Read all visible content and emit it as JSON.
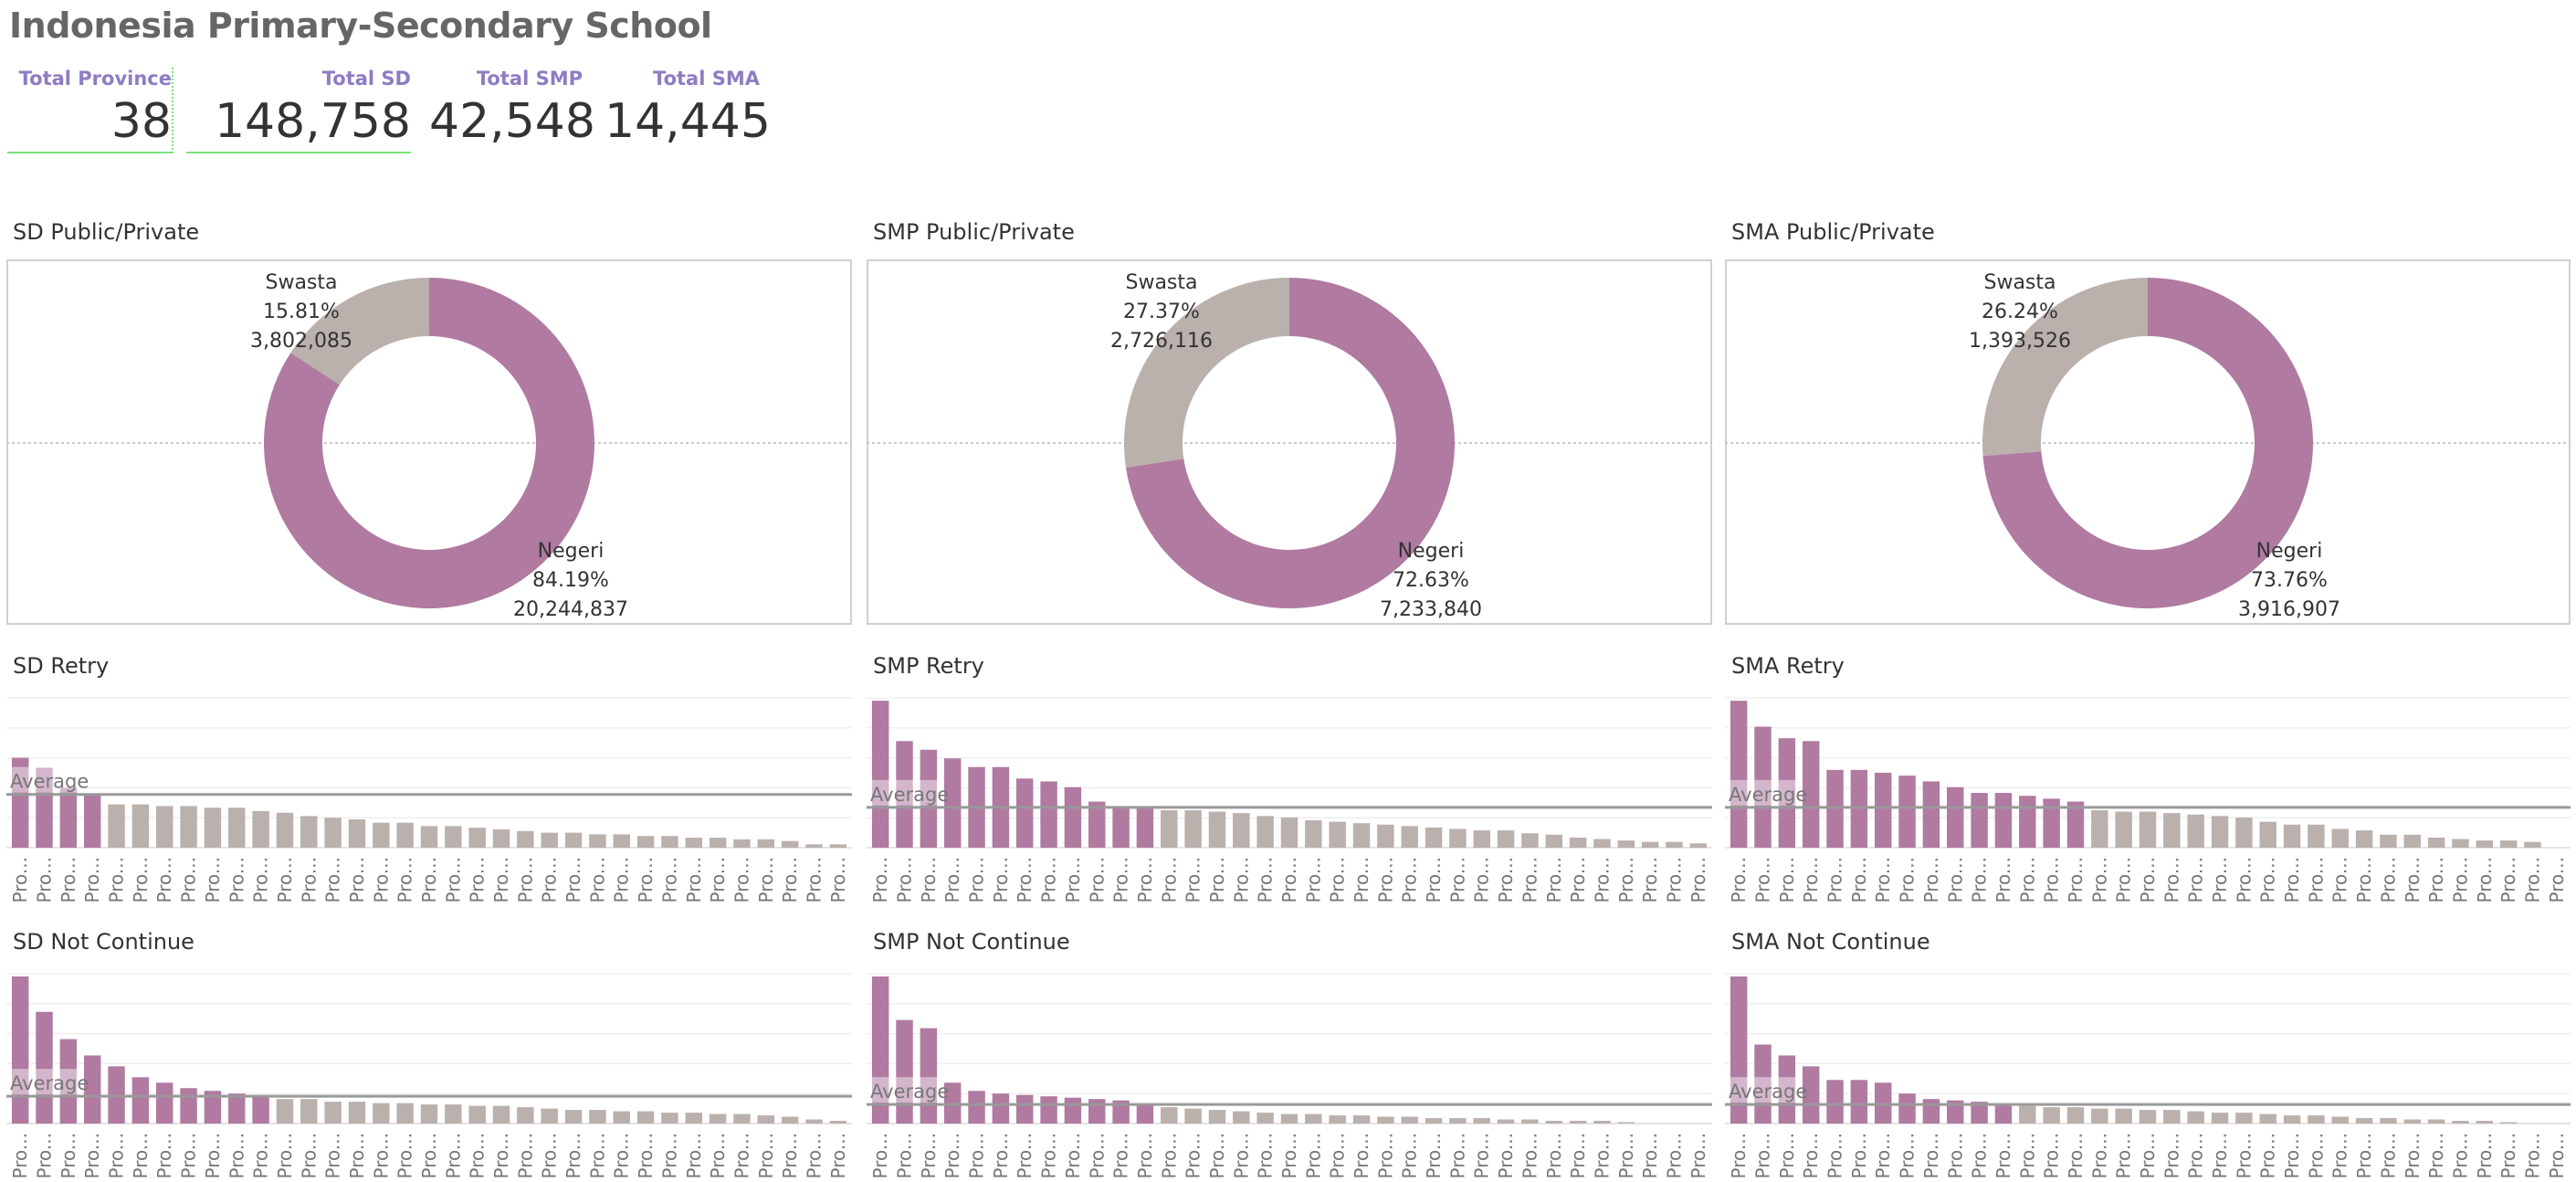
{
  "title": "Indonesia Primary-Secondary School",
  "kpis": [
    {
      "label": "Total Province",
      "value": "38"
    },
    {
      "label": "Total SD",
      "value": "148,758"
    },
    {
      "label": "Total SMP",
      "value": "42,548"
    },
    {
      "label": "Total SMA",
      "value": "14,445"
    }
  ],
  "colors": {
    "negeri": "#b07aa1",
    "swasta": "#bab0ac",
    "above": "#b07aa1",
    "below": "#bab0ac",
    "average_line": "#999999"
  },
  "chart_data": [
    {
      "type": "pie",
      "title": "SD Public/Private",
      "donut": true,
      "slices": [
        {
          "label": "Negeri",
          "percent": "84.19%",
          "value": 20244837,
          "value_text": "20,244,837"
        },
        {
          "label": "Swasta",
          "percent": "15.81%",
          "value": 3802085,
          "value_text": "3,802,085"
        }
      ]
    },
    {
      "type": "pie",
      "title": "SMP Public/Private",
      "donut": true,
      "slices": [
        {
          "label": "Negeri",
          "percent": "72.63%",
          "value": 7233840,
          "value_text": "7,233,840"
        },
        {
          "label": "Swasta",
          "percent": "27.37%",
          "value": 2726116,
          "value_text": "2,726,116"
        }
      ]
    },
    {
      "type": "pie",
      "title": "SMA Public/Private",
      "donut": true,
      "slices": [
        {
          "label": "Negeri",
          "percent": "73.76%",
          "value": 3916907,
          "value_text": "3,916,907"
        },
        {
          "label": "Swasta",
          "percent": "26.24%",
          "value": 1393526,
          "value_text": "1,393,526"
        }
      ]
    },
    {
      "type": "bar",
      "title": "SD Retry",
      "tick_label": "Pro...",
      "reference_label": "Average",
      "average": 16,
      "ymax": 45,
      "grid": true,
      "values": [
        27,
        24,
        18,
        16,
        13,
        13,
        12.5,
        12.5,
        12,
        12,
        11,
        10.5,
        9.5,
        9,
        8.5,
        7.5,
        7.5,
        6.5,
        6.5,
        6,
        5.5,
        5,
        4.5,
        4.5,
        4,
        4,
        3.5,
        3.5,
        3,
        3,
        2.5,
        2.5,
        2,
        1,
        1
      ]
    },
    {
      "type": "bar",
      "title": "SMP Retry",
      "tick_label": "Pro...",
      "reference_label": "Average",
      "average": 14,
      "ymax": 52,
      "grid": true,
      "values": [
        51,
        37,
        34,
        31,
        28,
        28,
        24,
        23,
        21,
        16,
        14,
        14,
        13,
        13,
        12.5,
        12,
        11,
        10.5,
        9.5,
        9,
        8.5,
        8,
        7.5,
        7,
        6.5,
        6,
        6,
        5,
        4.5,
        3.5,
        3,
        2.5,
        2,
        2,
        1.5
      ]
    },
    {
      "type": "bar",
      "title": "SMA Retry",
      "tick_label": "Pro...",
      "reference_label": "Average",
      "average": 14,
      "ymax": 52,
      "grid": true,
      "values": [
        51,
        42,
        38,
        37,
        27,
        27,
        26,
        25,
        23,
        21,
        19,
        19,
        18,
        17,
        16,
        13,
        12.5,
        12.5,
        12,
        11.5,
        11,
        10.5,
        9,
        8,
        8,
        6.5,
        6,
        4.5,
        4.5,
        3.5,
        3,
        2.5,
        2.5,
        2,
        0
      ]
    },
    {
      "type": "bar",
      "title": "SD Not Continue",
      "tick_label": "Pro...",
      "reference_label": "Average",
      "average": 10,
      "ymax": 55,
      "grid": true,
      "values": [
        54,
        41,
        31,
        25,
        21,
        17,
        15,
        13,
        12,
        11,
        10,
        9,
        9,
        8,
        8,
        7.5,
        7.5,
        7,
        7,
        6.5,
        6.5,
        6,
        5.5,
        5,
        5,
        4.5,
        4.5,
        4,
        4,
        3.5,
        3.5,
        3,
        2.5,
        1.5,
        1
      ]
    },
    {
      "type": "bar",
      "title": "SMP Not Continue",
      "tick_label": "Pro...",
      "reference_label": "Average",
      "average": 7,
      "ymax": 55,
      "grid": true,
      "values": [
        54,
        38,
        35,
        15,
        12,
        11,
        10.5,
        10,
        9.5,
        9,
        8.5,
        7,
        6,
        5.5,
        5,
        4.5,
        4,
        3.5,
        3.5,
        3,
        3,
        2.5,
        2.5,
        2,
        2,
        2,
        1.5,
        1.5,
        1,
        1,
        1,
        0.5,
        0,
        0,
        0
      ]
    },
    {
      "type": "bar",
      "title": "SMA Not Continue",
      "tick_label": "Pro...",
      "reference_label": "Average",
      "average": 7,
      "ymax": 55,
      "grid": true,
      "values": [
        54,
        29,
        25,
        21,
        16,
        16,
        15,
        11,
        9,
        8.5,
        8,
        7,
        6.5,
        6,
        6,
        5.5,
        5.5,
        5,
        5,
        4.5,
        4,
        4,
        3.5,
        3,
        3,
        2.5,
        2,
        2,
        1.5,
        1.5,
        1,
        1,
        0.5,
        0,
        0
      ]
    }
  ]
}
